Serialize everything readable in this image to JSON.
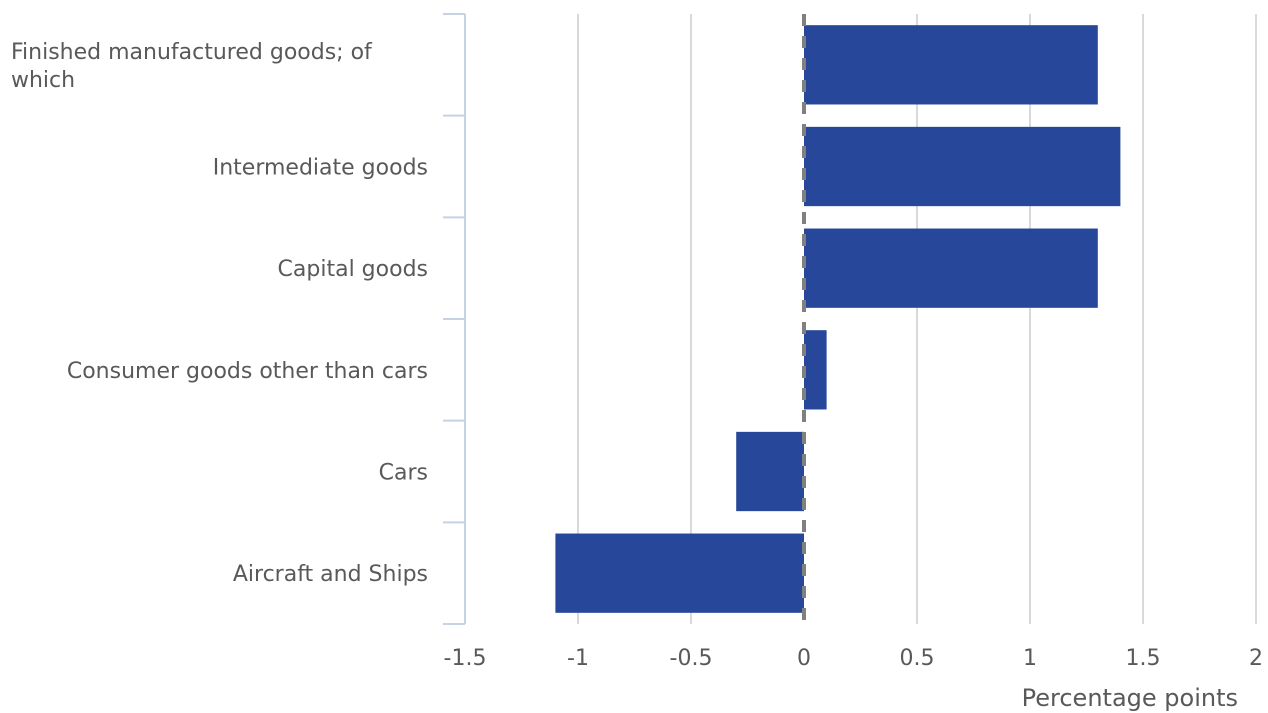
{
  "chart_data": {
    "type": "bar",
    "orientation": "horizontal",
    "categories": [
      "Finished manufactured goods; of which",
      "Intermediate goods",
      "Capital goods",
      "Consumer goods other than cars",
      "Cars",
      "Aircraft and Ships"
    ],
    "values": [
      1.3,
      1.4,
      1.3,
      0.1,
      -0.3,
      -1.1
    ],
    "xlabel": "Percentage points",
    "ylabel": "",
    "xlim": [
      -1.5,
      2
    ],
    "xticks": [
      -1.5,
      -1,
      -0.5,
      0,
      0.5,
      1,
      1.5,
      2
    ],
    "xtick_labels": [
      "-1.5",
      "-1",
      "-0.5",
      "0",
      "0.5",
      "1",
      "1.5",
      "2"
    ],
    "grid": "vertical",
    "bar_color": "#27479A",
    "gridline_color": "#D9D9D9",
    "zero_line_color": "#808080",
    "axis_color": "#C5D2E3",
    "text_color": "#595959"
  }
}
